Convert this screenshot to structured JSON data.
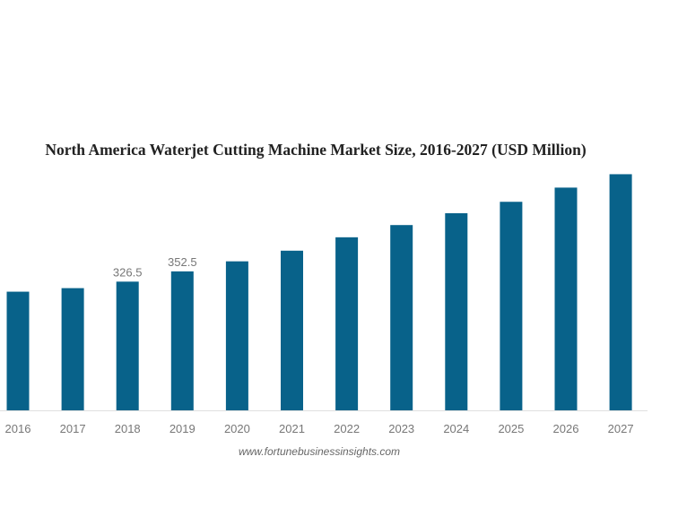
{
  "chart_data": {
    "type": "bar",
    "title": "North America Waterjet Cutting Machine Market Size, 2016-2027 (USD Million)",
    "categories": [
      "2016",
      "2017",
      "2018",
      "2019",
      "2020",
      "2021",
      "2022",
      "2023",
      "2024",
      "2025",
      "2026",
      "2027"
    ],
    "values": [
      301,
      310,
      326.5,
      352.5,
      378,
      405,
      439,
      470,
      500,
      529,
      565,
      599
    ],
    "data_labels": {
      "2018": "326.5",
      "2019": "352.5"
    },
    "xlabel": "",
    "ylabel": "",
    "ylim": [
      0,
      600
    ],
    "grid": false,
    "bar_color": "#08628a",
    "source": "www.fortunebusinessinsights.com"
  }
}
